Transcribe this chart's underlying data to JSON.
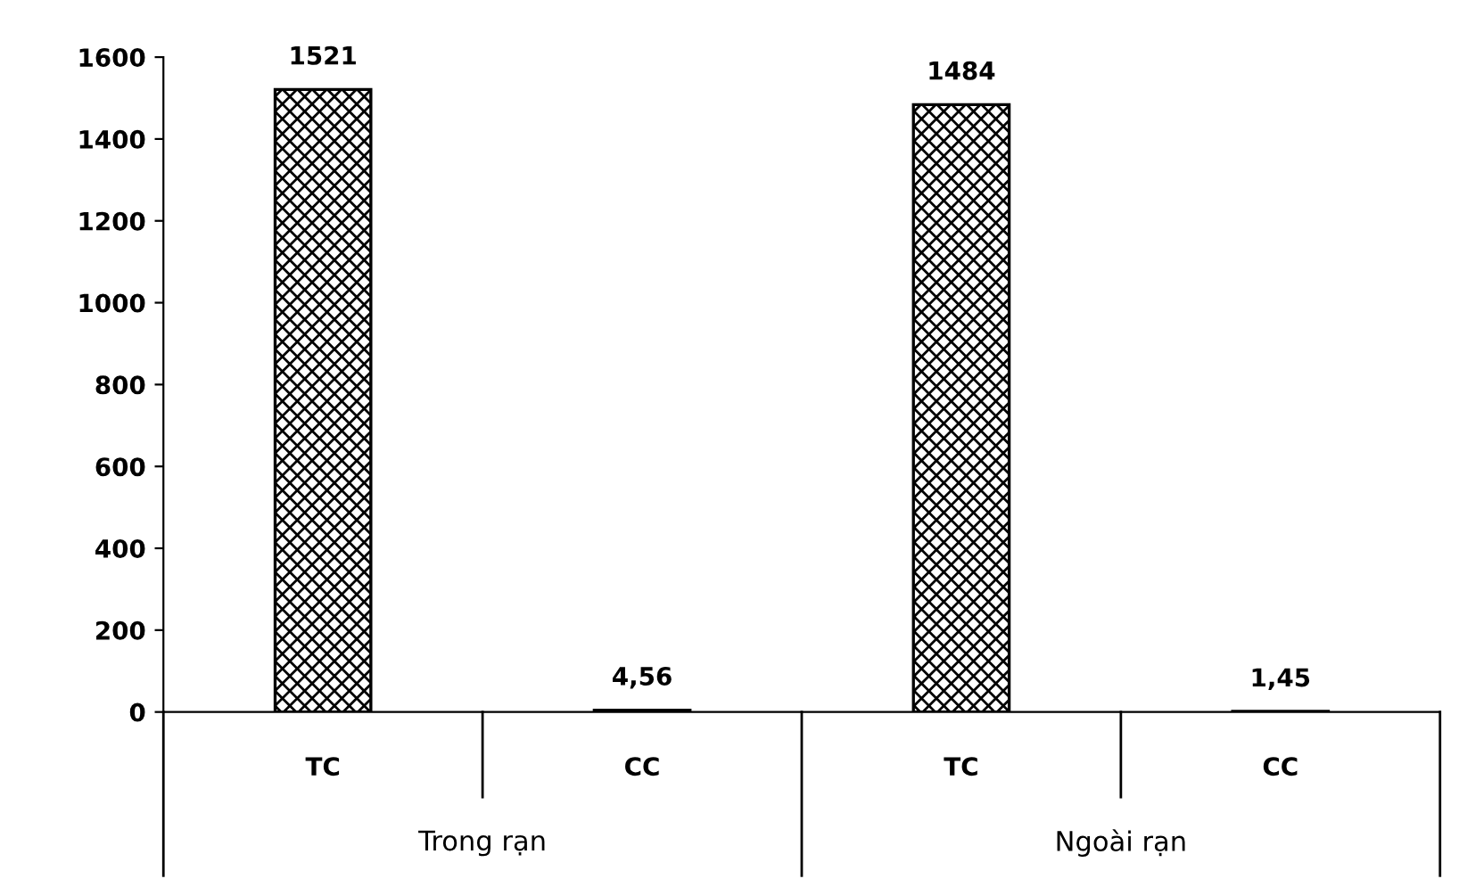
{
  "chart_data": {
    "type": "bar",
    "categories": [
      "TC",
      "CC",
      "TC",
      "CC"
    ],
    "values": [
      1521,
      4.56,
      1484,
      1.45
    ],
    "value_labels": [
      "1521",
      "4,56",
      "1484",
      "1,45"
    ],
    "color": "#000000",
    "ylim": [
      0,
      1600
    ],
    "yticks": [
      0,
      200,
      400,
      600,
      800,
      1000,
      1200,
      1400,
      1600
    ],
    "annotations": [
      "Trong rạn",
      "Ngoài rạn"
    ],
    "grid": false,
    "legend": false
  }
}
